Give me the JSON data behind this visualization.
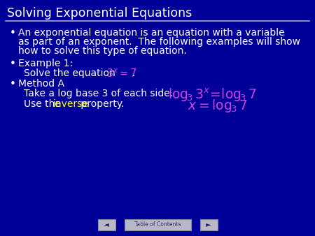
{
  "bg_color": "#000099",
  "title_text": "Solving Exponential Equations",
  "title_color": "#ffffff",
  "title_fontsize": 12.5,
  "line_color": "#aaaacc",
  "text_color": "#ffffff",
  "magenta_color": "#cc44dd",
  "yellow_color": "#ffff00",
  "body_fontsize": 10.0,
  "bullet1_line1": "An exponential equation is an equation with a variable",
  "bullet1_line2": "as part of an exponent.  The following examples will show",
  "bullet1_line3": "how to solve this type of equation.",
  "bullet2": "Example 1:",
  "solve_prefix": "Solve the equation ",
  "bullet3": "Method A",
  "take_text": "Take a log base 3 of each side.",
  "use_prefix": "Use the ",
  "inverse_text": "inverse",
  "use_suffix": " property.",
  "nav_button_color": "#b8b8cc",
  "nav_button_edge": "#888899",
  "nav_arrow_color": "#333366",
  "toc_text": "Table of Contents"
}
